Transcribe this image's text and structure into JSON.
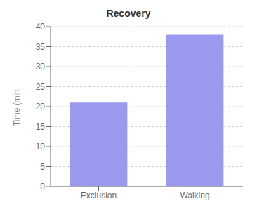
{
  "chart_data": {
    "type": "bar",
    "title": "Recovery",
    "categories": [
      "Exclusion",
      "Walking"
    ],
    "values": [
      21.0,
      38.0
    ],
    "color": "#9999EE",
    "ylabel": "Time (min.",
    "ylim": [
      0,
      40
    ],
    "yticks": [
      0,
      5,
      10,
      15,
      20,
      25,
      30,
      35,
      40
    ],
    "grid": true
  }
}
